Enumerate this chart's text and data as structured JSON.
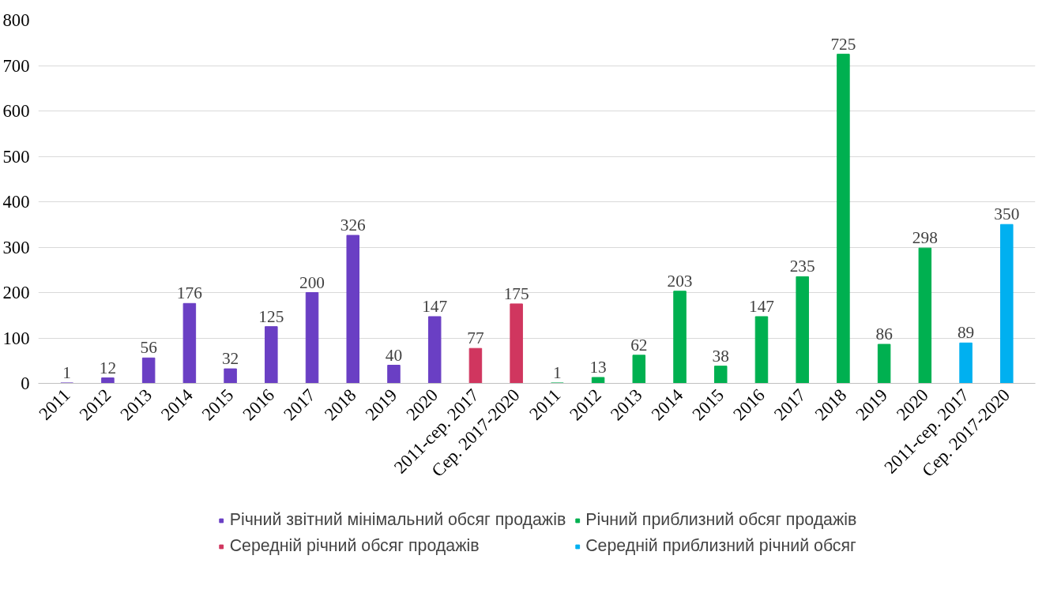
{
  "chart_data": {
    "type": "bar",
    "categories": [
      "2011",
      "2012",
      "2013",
      "2014",
      "2015",
      "2016",
      "2017",
      "2018",
      "2019",
      "2020",
      "2011-сер. 2017",
      "Сер. 2017-2020",
      "2011",
      "2012",
      "2013",
      "2014",
      "2015",
      "2016",
      "2017",
      "2018",
      "2019",
      "2020",
      "2011-сер. 2017",
      "Сер. 2017-2020"
    ],
    "series": [
      {
        "name": "Річний звітний мінімальний обсяг продажів",
        "color": "#6a3fc4",
        "values": [
          1,
          12,
          56,
          176,
          32,
          125,
          200,
          326,
          40,
          147,
          null,
          null,
          null,
          null,
          null,
          null,
          null,
          null,
          null,
          null,
          null,
          null,
          null,
          null
        ]
      },
      {
        "name": "Середній річний обсяг продажів",
        "color": "#d0365f",
        "values": [
          null,
          null,
          null,
          null,
          null,
          null,
          null,
          null,
          null,
          null,
          77,
          175,
          null,
          null,
          null,
          null,
          null,
          null,
          null,
          null,
          null,
          null,
          null,
          null
        ]
      },
      {
        "name": "Річний приблизний обсяг продажів",
        "color": "#00b050",
        "values": [
          null,
          null,
          null,
          null,
          null,
          null,
          null,
          null,
          null,
          null,
          null,
          null,
          1,
          13,
          62,
          203,
          38,
          147,
          235,
          725,
          86,
          298,
          null,
          null
        ]
      },
      {
        "name": "Середній приблизний річний обсяг",
        "color": "#00b0f0",
        "values": [
          null,
          null,
          null,
          null,
          null,
          null,
          null,
          null,
          null,
          null,
          null,
          null,
          null,
          null,
          null,
          null,
          null,
          null,
          null,
          null,
          null,
          null,
          89,
          350
        ]
      }
    ],
    "ylim": [
      0,
      800
    ],
    "yticks": [
      0,
      100,
      200,
      300,
      400,
      500,
      600,
      700,
      800
    ],
    "grid": "y",
    "legend": "bottom",
    "data_labels": true
  }
}
